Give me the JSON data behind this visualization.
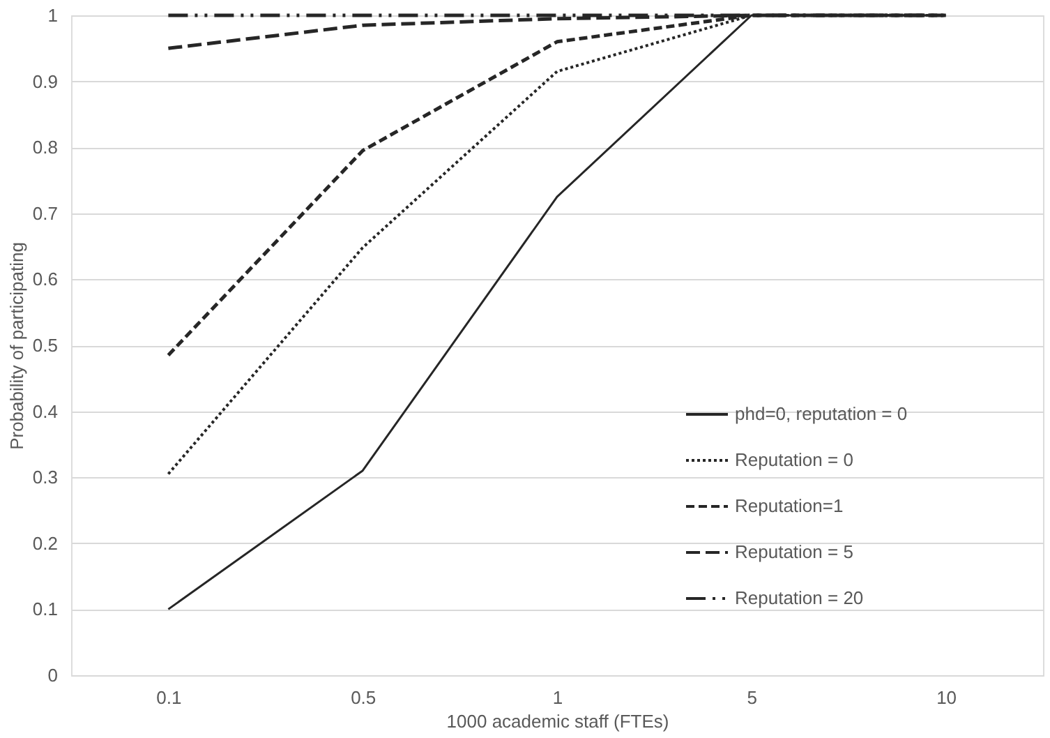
{
  "chart_data": {
    "type": "line",
    "xlabel": "1000 academic staff (FTEs)",
    "ylabel": "Probability of participating",
    "categories": [
      "0.1",
      "0.5",
      "1",
      "5",
      "10"
    ],
    "series": [
      {
        "name": "phd=0, reputation = 0",
        "color": "#262626",
        "line_style": "solid",
        "values": [
          0.1,
          0.31,
          0.725,
          1,
          1
        ]
      },
      {
        "name": "Reputation = 0",
        "color": "#262626",
        "line_style": "dotted",
        "values": [
          0.305,
          0.648,
          0.915,
          1,
          1
        ]
      },
      {
        "name": "Reputation=1",
        "color": "#262626",
        "line_style": "dashed",
        "values": [
          0.485,
          0.795,
          0.96,
          1,
          1
        ]
      },
      {
        "name": "Reputation = 5",
        "color": "#262626",
        "line_style": "longdashed",
        "values": [
          0.95,
          0.985,
          0.995,
          1,
          1
        ]
      },
      {
        "name": "Reputation = 20",
        "color": "#262626",
        "line_style": "dashdot",
        "values": [
          1,
          1,
          1,
          1,
          1
        ]
      }
    ],
    "ylim": [
      0,
      1
    ],
    "yticks": [
      0,
      0.1,
      0.2,
      0.3,
      0.4,
      0.5,
      0.6,
      0.7,
      0.8,
      0.9,
      1
    ],
    "grid": "y",
    "legend": "right",
    "marker": "none"
  }
}
